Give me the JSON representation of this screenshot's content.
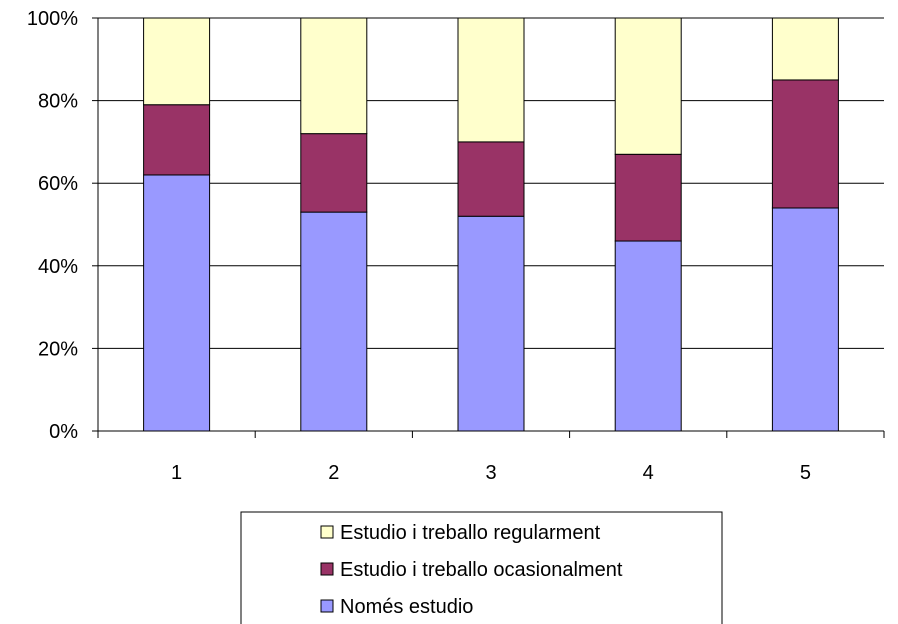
{
  "chart_data": {
    "type": "bar",
    "stacked": true,
    "percent": true,
    "categories": [
      "1",
      "2",
      "3",
      "4",
      "5"
    ],
    "series": [
      {
        "name": "Només estudio",
        "values": [
          62,
          53,
          52,
          46,
          54
        ],
        "color": "#9999ff"
      },
      {
        "name": "Estudio i treballo ocasionalment",
        "values": [
          17,
          19,
          18,
          21,
          31
        ],
        "color": "#993366"
      },
      {
        "name": "Estudio i treballo regularment",
        "values": [
          21,
          28,
          30,
          33,
          15
        ],
        "color": "#ffffcc"
      }
    ],
    "legend_order": [
      2,
      1,
      0
    ],
    "y_ticks": [
      "0%",
      "20%",
      "40%",
      "60%",
      "80%",
      "100%"
    ],
    "ylim": [
      0,
      100
    ],
    "grid": true,
    "legend_position": "bottom",
    "title": "",
    "xlabel": "",
    "ylabel": ""
  }
}
